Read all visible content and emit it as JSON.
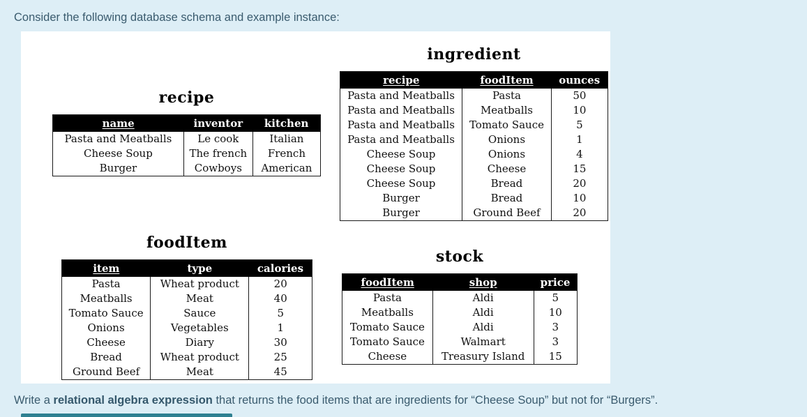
{
  "intro_text": "Consider the following database schema and example instance:",
  "question": {
    "prefix": "Write a ",
    "bold": "relational algebra expression",
    "suffix": " that returns the food items that are ingredients for “Cheese Soup” but not for “Burgers”."
  },
  "colors": {
    "page_background": "#ddeef6",
    "body_text": "#3a5b6e",
    "panel_background": "#ffffff",
    "table_header_background": "#000000",
    "table_header_text": "#ffffff",
    "answer_strip": "#2e8091"
  },
  "tables": [
    {
      "title": "recipe",
      "columns": [
        {
          "label": "name",
          "key": true
        },
        {
          "label": "inventor",
          "key": false
        },
        {
          "label": "kitchen",
          "key": false
        }
      ],
      "rows": [
        [
          "Pasta and Meatballs",
          "Le cook",
          "Italian"
        ],
        [
          "Cheese Soup",
          "The french",
          "French"
        ],
        [
          "Burger",
          "Cowboys",
          "American"
        ]
      ]
    },
    {
      "title": "ingredient",
      "columns": [
        {
          "label": "recipe",
          "key": true
        },
        {
          "label": "foodItem",
          "key": true
        },
        {
          "label": "ounces",
          "key": false
        }
      ],
      "rows": [
        [
          "Pasta and Meatballs",
          "Pasta",
          "50"
        ],
        [
          "Pasta and Meatballs",
          "Meatballs",
          "10"
        ],
        [
          "Pasta and Meatballs",
          "Tomato Sauce",
          "5"
        ],
        [
          "Pasta and Meatballs",
          "Onions",
          "1"
        ],
        [
          "Cheese Soup",
          "Onions",
          "4"
        ],
        [
          "Cheese Soup",
          "Cheese",
          "15"
        ],
        [
          "Cheese Soup",
          "Bread",
          "20"
        ],
        [
          "Burger",
          "Bread",
          "10"
        ],
        [
          "Burger",
          "Ground Beef",
          "20"
        ]
      ]
    },
    {
      "title": "foodItem",
      "columns": [
        {
          "label": "item",
          "key": true
        },
        {
          "label": "type",
          "key": false
        },
        {
          "label": "calories",
          "key": false
        }
      ],
      "rows": [
        [
          "Pasta",
          "Wheat product",
          "20"
        ],
        [
          "Meatballs",
          "Meat",
          "40"
        ],
        [
          "Tomato Sauce",
          "Sauce",
          "5"
        ],
        [
          "Onions",
          "Vegetables",
          "1"
        ],
        [
          "Cheese",
          "Diary",
          "30"
        ],
        [
          "Bread",
          "Wheat product",
          "25"
        ],
        [
          "Ground Beef",
          "Meat",
          "45"
        ]
      ]
    },
    {
      "title": "stock",
      "columns": [
        {
          "label": "foodItem",
          "key": true
        },
        {
          "label": "shop",
          "key": true
        },
        {
          "label": "price",
          "key": false
        }
      ],
      "rows": [
        [
          "Pasta",
          "Aldi",
          "5"
        ],
        [
          "Meatballs",
          "Aldi",
          "10"
        ],
        [
          "Tomato Sauce",
          "Aldi",
          "3"
        ],
        [
          "Tomato Sauce",
          "Walmart",
          "3"
        ],
        [
          "Cheese",
          "Treasury Island",
          "15"
        ]
      ]
    }
  ]
}
